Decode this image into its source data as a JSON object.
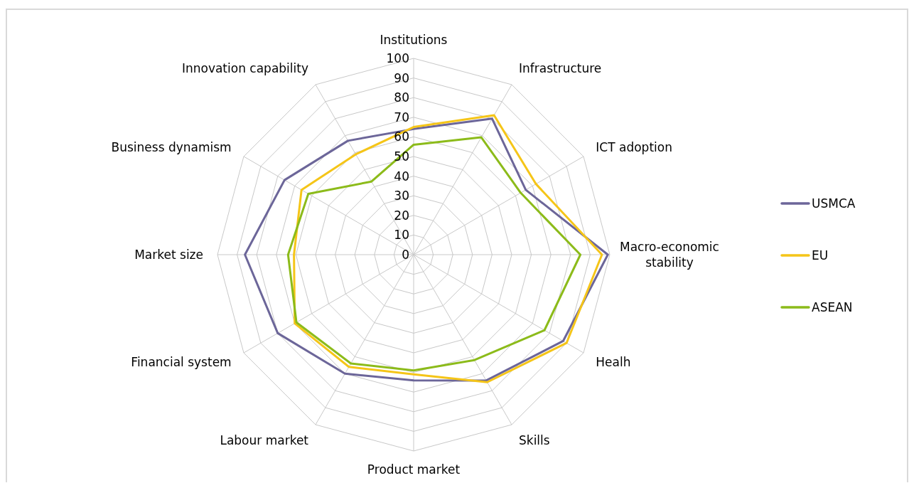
{
  "chart_data": {
    "type": "radar",
    "categories": [
      "Institutions",
      "Infrastructure",
      "ICT adoption",
      "Macro-economic stability",
      "Healh",
      "Skills",
      "Product market",
      "Labour market",
      "Financial system",
      "Market size",
      "Business dynamism",
      "Innovation capability"
    ],
    "series": [
      {
        "name": "USMCA",
        "color": "#6c6699",
        "values": [
          64,
          80,
          66,
          99,
          88,
          74,
          64,
          70,
          80,
          86,
          76,
          67
        ]
      },
      {
        "name": "EU",
        "color": "#f5c518",
        "values": [
          65,
          82,
          72,
          96,
          90,
          75,
          61,
          66,
          70,
          61,
          66,
          59
        ]
      },
      {
        "name": "ASEAN",
        "color": "#8cbb1a",
        "values": [
          56,
          69,
          63,
          85,
          77,
          62,
          59,
          64,
          69,
          64,
          62,
          43
        ]
      }
    ],
    "ylim": [
      0,
      100
    ],
    "yticks": [
      0,
      10,
      20,
      30,
      40,
      50,
      60,
      70,
      80,
      90,
      100
    ],
    "grid": true,
    "legend": "right",
    "marker": "none",
    "line_style": "solid"
  }
}
